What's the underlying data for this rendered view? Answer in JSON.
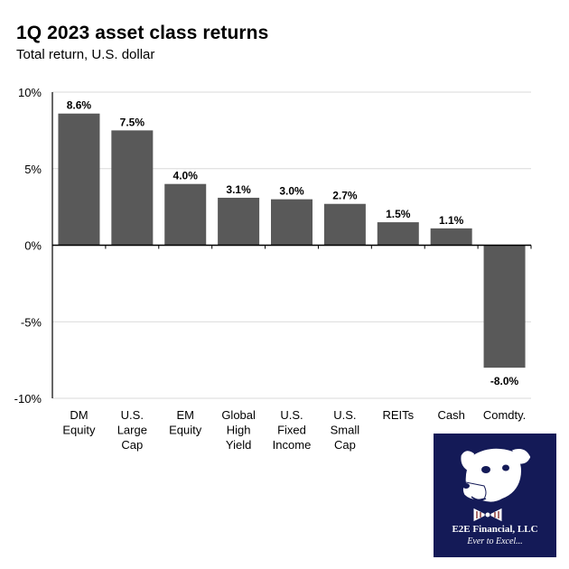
{
  "header": {
    "title": "1Q 2023 asset class returns",
    "subtitle": "Total return, U.S. dollar"
  },
  "chart_data": {
    "type": "bar",
    "title": "1Q 2023 asset class returns",
    "subtitle": "Total return, U.S. dollar",
    "categories": [
      [
        "DM",
        "Equity"
      ],
      [
        "U.S.",
        "Large",
        "Cap"
      ],
      [
        "EM",
        "Equity"
      ],
      [
        "Global",
        "High",
        "Yield"
      ],
      [
        "U.S.",
        "Fixed",
        "Income"
      ],
      [
        "U.S.",
        "Small",
        "Cap"
      ],
      [
        "REITs"
      ],
      [
        "Cash"
      ],
      [
        "Comdty."
      ]
    ],
    "values": [
      8.6,
      7.5,
      4.0,
      3.1,
      3.0,
      2.7,
      1.5,
      1.1,
      -8.0
    ],
    "data_labels": [
      "8.6%",
      "7.5%",
      "4.0%",
      "3.1%",
      "3.0%",
      "2.7%",
      "1.5%",
      "1.1%",
      "-8.0%"
    ],
    "ylim": [
      -10,
      10
    ],
    "yticks": [
      10,
      5,
      0,
      -5,
      -10
    ],
    "ytick_labels": [
      "10%",
      "5%",
      "0%",
      "-5%",
      "-10%"
    ],
    "xlabel": "",
    "ylabel": "",
    "grid": true,
    "bar_color": "#595959"
  },
  "logo": {
    "name": "E2E Financial, LLC",
    "tagline": "Ever to Excel...",
    "background": "#141a57"
  }
}
